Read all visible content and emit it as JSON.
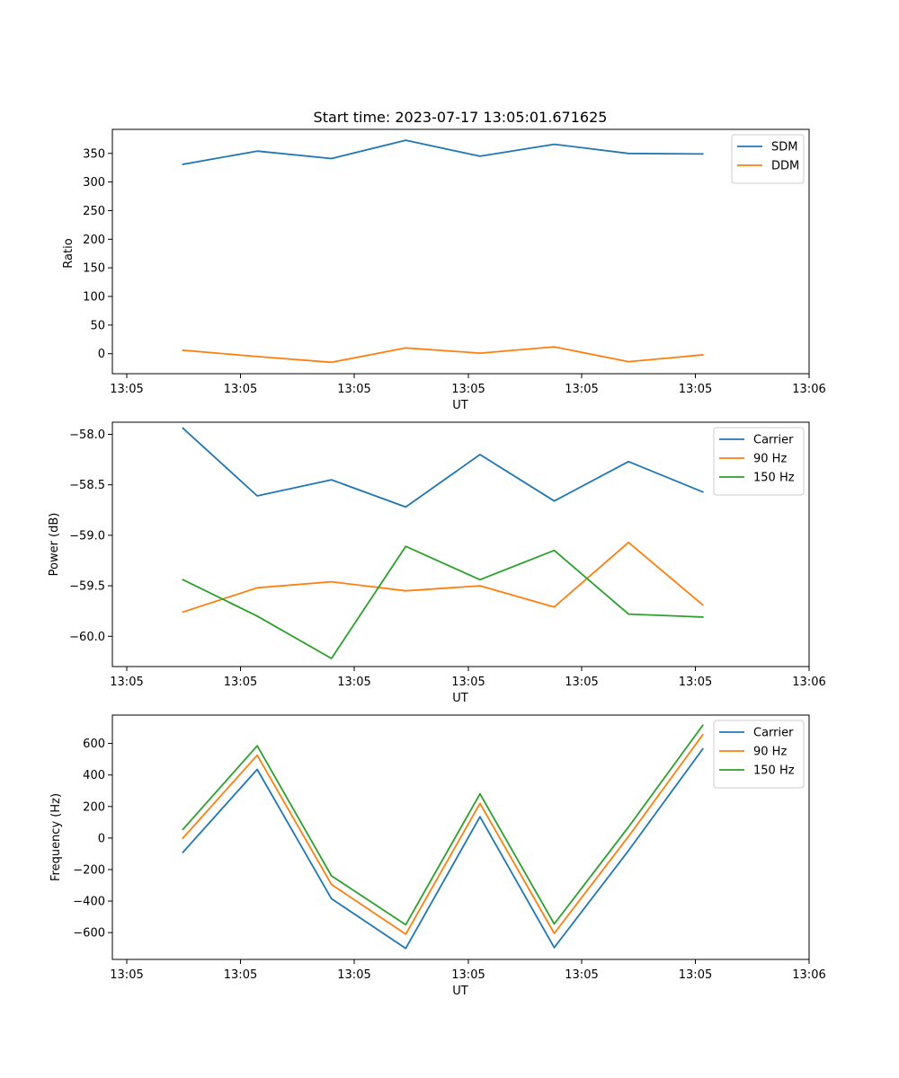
{
  "chart_data": [
    {
      "type": "line",
      "title": "Start time: 2023-07-17 13:05:01.671625",
      "xlabel": "UT",
      "ylabel": "Ratio",
      "x_index": [
        0,
        1,
        2,
        3,
        4,
        5,
        6,
        7
      ],
      "x_ticks": [
        "13:05",
        "13:05",
        "13:05",
        "13:05",
        "13:05",
        "13:05",
        "13:06"
      ],
      "y_ticks": [
        0,
        50,
        100,
        150,
        200,
        250,
        300,
        350
      ],
      "ylim": [
        -35,
        392
      ],
      "legend_position": "top-right",
      "series": [
        {
          "name": "SDM",
          "color": "#1f77b4",
          "values": [
            331,
            354,
            341,
            373,
            345,
            366,
            350,
            349
          ]
        },
        {
          "name": "DDM",
          "color": "#ff7f0e",
          "values": [
            6,
            -5,
            -15,
            10,
            1,
            12,
            -14,
            -2
          ]
        }
      ]
    },
    {
      "type": "line",
      "title": "",
      "xlabel": "UT",
      "ylabel": "Power (dB)",
      "x_index": [
        0,
        1,
        2,
        3,
        4,
        5,
        6,
        7
      ],
      "x_ticks": [
        "13:05",
        "13:05",
        "13:05",
        "13:05",
        "13:05",
        "13:05",
        "13:06"
      ],
      "y_ticks": [
        "−58.0",
        "−58.5",
        "−59.0",
        "−59.5",
        "−60.0"
      ],
      "y_tick_values": [
        -58.0,
        -58.5,
        -59.0,
        -59.5,
        -60.0
      ],
      "ylim": [
        -60.3,
        -57.88
      ],
      "legend_position": "top-right",
      "series": [
        {
          "name": "Carrier",
          "color": "#1f77b4",
          "values": [
            -57.94,
            -58.61,
            -58.45,
            -58.72,
            -58.2,
            -58.66,
            -58.27,
            -58.57
          ]
        },
        {
          "name": "90 Hz",
          "color": "#ff7f0e",
          "values": [
            -59.76,
            -59.52,
            -59.46,
            -59.55,
            -59.5,
            -59.71,
            -59.07,
            -59.69
          ]
        },
        {
          "name": "150 Hz",
          "color": "#2ca02c",
          "values": [
            -59.44,
            -59.8,
            -60.22,
            -59.11,
            -59.44,
            -59.15,
            -59.78,
            -59.81
          ]
        }
      ]
    },
    {
      "type": "line",
      "title": "",
      "xlabel": "UT",
      "ylabel": "Frequency (Hz)",
      "x_index": [
        0,
        1,
        2,
        3,
        4,
        5,
        6,
        7
      ],
      "x_ticks": [
        "13:05",
        "13:05",
        "13:05",
        "13:05",
        "13:05",
        "13:05",
        "13:06"
      ],
      "y_ticks": [
        "−600",
        "−400",
        "−200",
        "0",
        "200",
        "400",
        "600"
      ],
      "y_tick_values": [
        -600,
        -400,
        -200,
        0,
        200,
        400,
        600
      ],
      "ylim": [
        -770,
        780
      ],
      "legend_position": "top-right",
      "series": [
        {
          "name": "Carrier",
          "color": "#1f77b4",
          "values": [
            -90,
            435,
            -385,
            -700,
            135,
            -695,
            -80,
            565
          ]
        },
        {
          "name": "90 Hz",
          "color": "#ff7f0e",
          "values": [
            0,
            525,
            -295,
            -610,
            220,
            -605,
            10,
            655
          ]
        },
        {
          "name": "150 Hz",
          "color": "#2ca02c",
          "values": [
            55,
            585,
            -240,
            -550,
            280,
            -545,
            70,
            715
          ]
        }
      ]
    }
  ]
}
